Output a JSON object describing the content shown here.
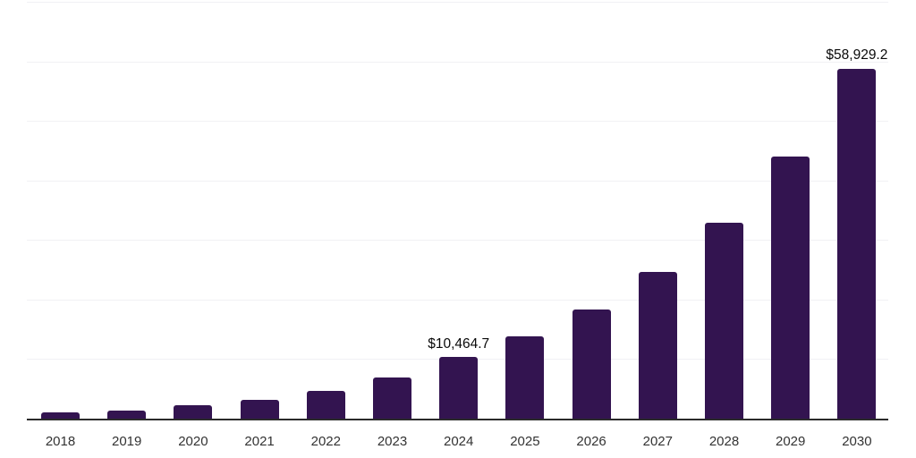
{
  "chart_data": {
    "type": "bar",
    "title": "",
    "xlabel": "",
    "ylabel": "",
    "categories": [
      "2018",
      "2019",
      "2020",
      "2021",
      "2022",
      "2023",
      "2024",
      "2025",
      "2026",
      "2027",
      "2028",
      "2029",
      "2030"
    ],
    "values": [
      1250,
      1550,
      2350,
      3270,
      4800,
      7000,
      10464.7,
      13900,
      18550,
      24750,
      33000,
      44100,
      58929.2
    ],
    "point_labels": [
      "",
      "",
      "",
      "",
      "",
      "",
      "$10,464.7",
      "",
      "",
      "",
      "",
      "",
      "$58,929.2"
    ],
    "ylim": [
      0,
      70000
    ],
    "gridline_step": 10000,
    "grid": true,
    "y_axis_labels_visible": false,
    "legend_position": "none",
    "colors": {
      "bar": "#331450",
      "axis": "#2b2b2b",
      "gridline": "#f1f1f4",
      "tick_label": "#333333",
      "point_label": "#0a0a0a",
      "background": "#ffffff"
    }
  }
}
